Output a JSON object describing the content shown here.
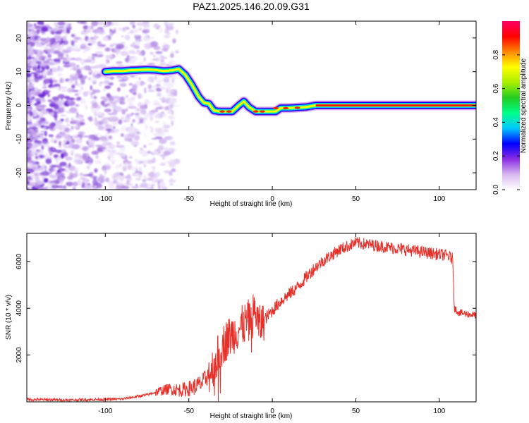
{
  "title": "PAZ1.2025.146.20.09.G31",
  "chart_data": [
    {
      "type": "heatmap",
      "xlabel": "Height of straight line (km)",
      "ylabel": "Frequency (Hz)",
      "xlim": [
        -147,
        122
      ],
      "ylim": [
        -25,
        25
      ],
      "xticks": [
        -100,
        -50,
        0,
        50,
        100
      ],
      "yticks": [
        -20,
        -10,
        0,
        10,
        20
      ],
      "colorbar": {
        "label": "Normalized spectral amplitude",
        "range": [
          0,
          1
        ],
        "ticks": [
          "0.0",
          "0.2",
          "0.4",
          "0.6",
          "0.8"
        ],
        "colors": [
          "#ffffff",
          "#d8b8f0",
          "#8a2be2",
          "#0000ff",
          "#00c8ff",
          "#00ff88",
          "#22cc22",
          "#aaee00",
          "#ffff00",
          "#ff8800",
          "#ff0000",
          "#ff0066"
        ]
      },
      "ridge": {
        "x": [
          -100,
          -95,
          -90,
          -85,
          -80,
          -75,
          -70,
          -65,
          -60,
          -56,
          -52,
          -48,
          -44,
          -41,
          -38,
          -35,
          -32,
          -28,
          -24,
          -20,
          -17,
          -14,
          -10,
          -6,
          -2,
          2,
          5,
          10,
          20,
          26,
          40,
          60,
          80,
          100,
          122
        ],
        "y": [
          10,
          10.2,
          10.2,
          10.4,
          10.5,
          10.6,
          10.5,
          10.2,
          10.4,
          10.8,
          9,
          6,
          2.5,
          0.8,
          0.5,
          -1.5,
          -1.8,
          -1.8,
          -1.8,
          0,
          1.2,
          -0.5,
          -1.8,
          -1.8,
          -1.8,
          -1.8,
          -0.8,
          -0.8,
          -0.5,
          0,
          0,
          0,
          0,
          0,
          0
        ]
      }
    },
    {
      "type": "line",
      "xlabel": "Height of straight line (km)",
      "ylabel": "SNR (10 * v/v)",
      "xlim": [
        -147,
        122
      ],
      "ylim": [
        0,
        7200
      ],
      "xticks": [
        -100,
        -50,
        0,
        50,
        100
      ],
      "yticks": [
        2000,
        4000,
        6000
      ],
      "color": "#e8302a",
      "profile": {
        "x": [
          -147,
          -120,
          -90,
          -75,
          -68,
          -62,
          -55,
          -48,
          -42,
          -38,
          -34,
          -31,
          -27,
          -22,
          -17,
          -13,
          -10,
          -8,
          -5,
          0,
          5,
          10,
          15,
          20,
          25,
          30,
          40,
          50,
          60,
          70,
          80,
          90,
          100,
          105,
          108,
          109,
          112,
          122
        ],
        "y": [
          100,
          80,
          120,
          300,
          450,
          550,
          500,
          600,
          800,
          1200,
          1700,
          2300,
          2700,
          3000,
          3300,
          3600,
          3900,
          3200,
          3500,
          3900,
          4300,
          4600,
          4900,
          5300,
          5700,
          6000,
          6500,
          6800,
          6700,
          6600,
          6500,
          6400,
          6300,
          6250,
          6100,
          4000,
          3800,
          3700
        ]
      }
    }
  ]
}
